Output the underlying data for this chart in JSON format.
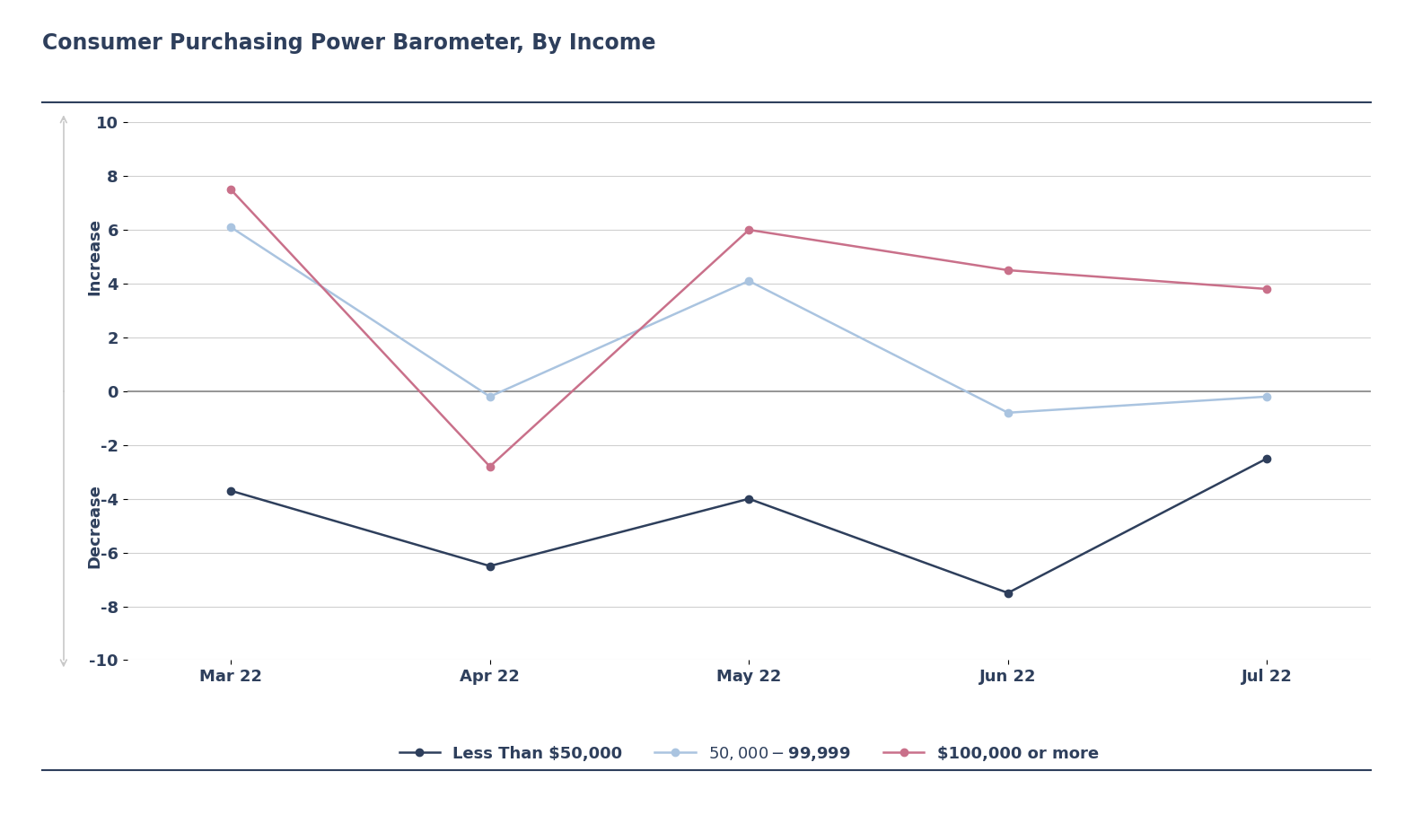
{
  "title": "Consumer Purchasing Power Barometer, By Income",
  "x_labels": [
    "Mar 22",
    "Apr 22",
    "May 22",
    "Jun 22",
    "Jul 22"
  ],
  "series": [
    {
      "label": "Less Than $50,000",
      "values": [
        -3.7,
        -6.5,
        -4.0,
        -7.5,
        -2.5
      ],
      "color": "#2e3f5c",
      "marker": "o",
      "linewidth": 1.8,
      "markersize": 6
    },
    {
      "label": "$50,000 - $99,999",
      "values": [
        6.1,
        -0.2,
        4.1,
        -0.8,
        -0.2
      ],
      "color": "#aac4e0",
      "marker": "o",
      "linewidth": 1.8,
      "markersize": 6
    },
    {
      "label": "$100,000 or more",
      "values": [
        7.5,
        -2.8,
        6.0,
        4.5,
        3.8
      ],
      "color": "#c9708a",
      "marker": "o",
      "linewidth": 1.8,
      "markersize": 6
    }
  ],
  "ylim": [
    -10,
    10
  ],
  "yticks": [
    -10,
    -8,
    -6,
    -4,
    -2,
    0,
    2,
    4,
    6,
    8,
    10
  ],
  "background_color": "#ffffff",
  "grid_color": "#d0d0d0",
  "title_color": "#2e3f5c",
  "axis_label_color": "#2e3f5c",
  "tick_color": "#2e3f5c",
  "increase_label": "Increase",
  "decrease_label": "Decrease",
  "title_fontsize": 17,
  "tick_fontsize": 13,
  "legend_fontsize": 13,
  "axis_label_fontsize": 13,
  "separator_color": "#2e3f5c",
  "arrow_color": "#c8c8c8",
  "zeroline_color": "#888888"
}
